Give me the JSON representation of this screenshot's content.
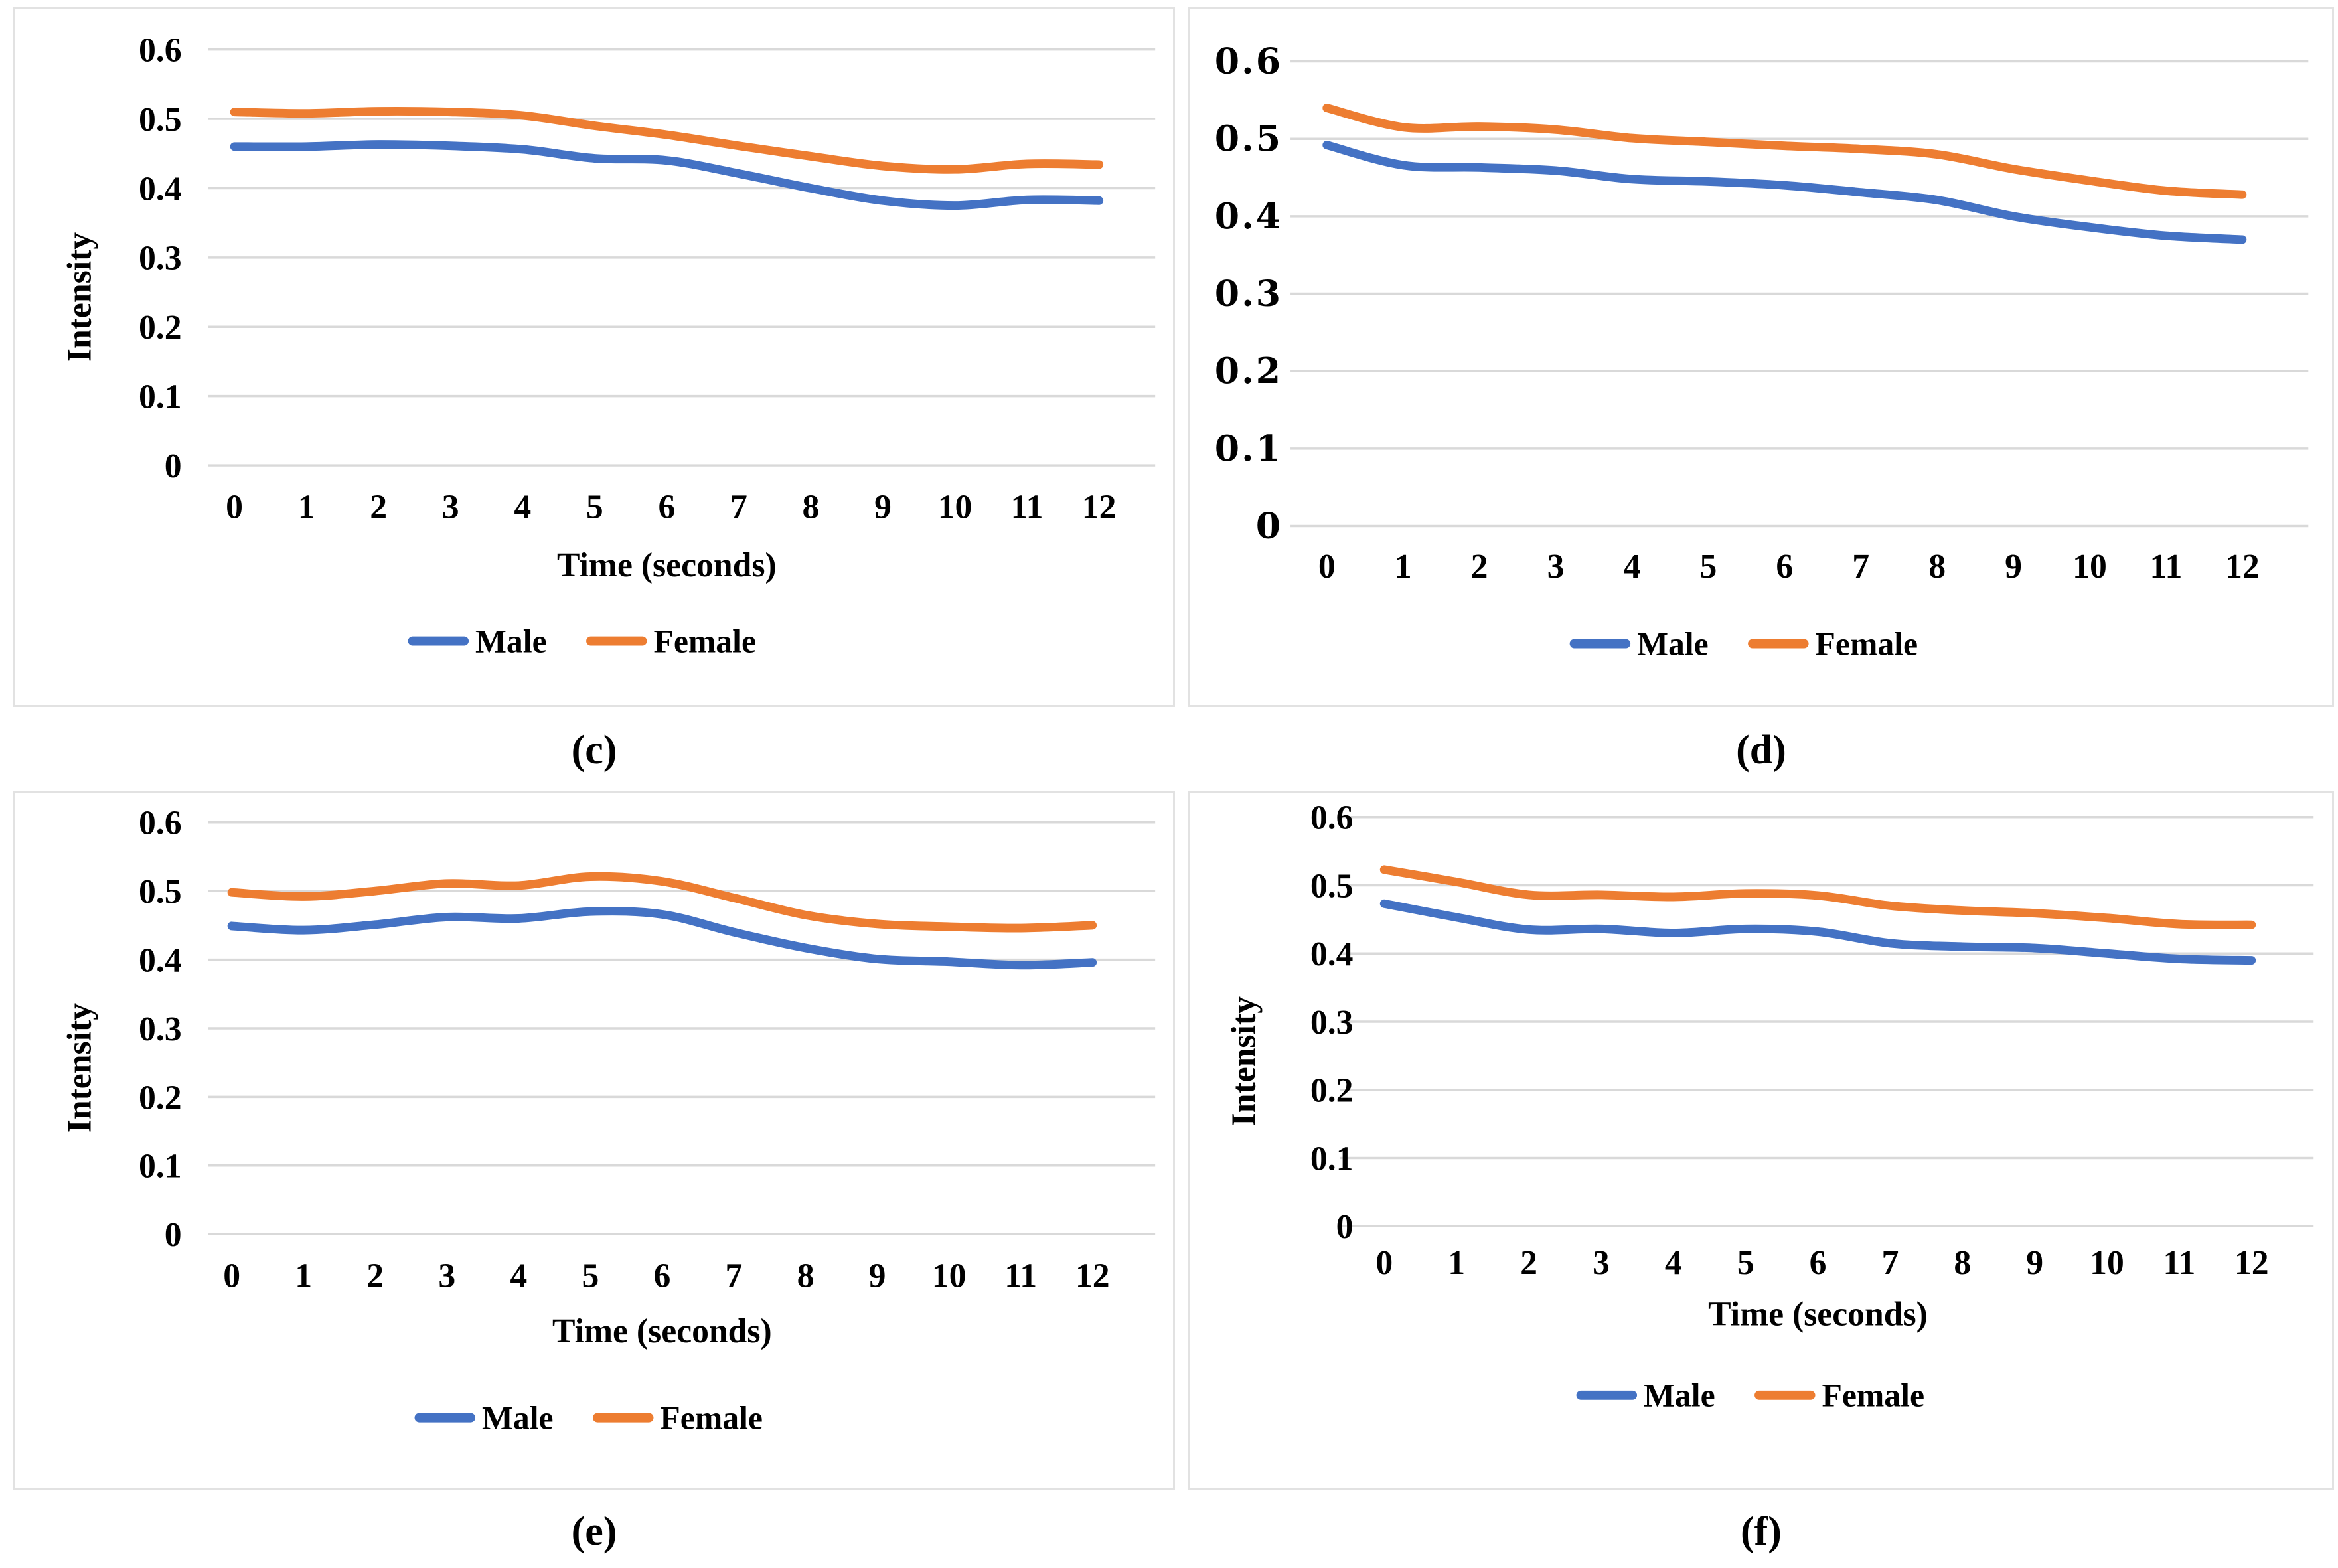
{
  "colors": {
    "male": "#4472C4",
    "female": "#ED7D31",
    "gridline": "#D9D9D9",
    "panel_border": "#E2E2E2",
    "text": "#000000",
    "background": "#FFFFFF"
  },
  "legend": {
    "male_label": "Male",
    "female_label": "Female",
    "position": "bottom"
  },
  "chart_data": [
    {
      "id": "c",
      "caption": "(c)",
      "type": "line",
      "title": "",
      "xlabel": "Time (seconds)",
      "ylabel": "Intensity",
      "x": [
        0,
        1,
        2,
        3,
        4,
        5,
        6,
        7,
        8,
        9,
        10,
        11,
        12
      ],
      "x_tick_labels": [
        "0",
        "1",
        "2",
        "3",
        "4",
        "5",
        "6",
        "7",
        "8",
        "9",
        "10",
        "11",
        "12"
      ],
      "y_ticks": [
        0.6,
        0.5,
        0.4,
        0.3,
        0.2,
        0.1,
        0
      ],
      "y_tick_labels": [
        "0.6",
        "0.5",
        "0.4",
        "0.3",
        "0.2",
        "0.1",
        "0"
      ],
      "ylim": [
        0,
        0.6
      ],
      "grid": true,
      "legend_position": "bottom",
      "series": [
        {
          "name": "Male",
          "color": "#4472C4",
          "values": [
            0.46,
            0.46,
            0.463,
            0.461,
            0.456,
            0.443,
            0.44,
            0.421,
            0.4,
            0.382,
            0.375,
            0.383,
            0.382
          ]
        },
        {
          "name": "Female",
          "color": "#ED7D31",
          "values": [
            0.51,
            0.508,
            0.511,
            0.51,
            0.505,
            0.49,
            0.477,
            0.461,
            0.446,
            0.432,
            0.427,
            0.435,
            0.434
          ]
        }
      ]
    },
    {
      "id": "d",
      "caption": "(d)",
      "type": "line",
      "title": "",
      "xlabel": "",
      "ylabel": "",
      "x": [
        0,
        1,
        2,
        3,
        4,
        5,
        6,
        7,
        8,
        9,
        10,
        11,
        12
      ],
      "x_tick_labels": [
        "0",
        "1",
        "2",
        "3",
        "4",
        "5",
        "6",
        "7",
        "8",
        "9",
        "10",
        "11",
        "12"
      ],
      "y_ticks": [
        0.6,
        0.5,
        0.4,
        0.3,
        0.2,
        0.1,
        0
      ],
      "y_tick_labels": [
        "0.6",
        "0.5",
        "0.4",
        "0.3",
        "0.2",
        "0.1",
        "0"
      ],
      "ylim": [
        0,
        0.6
      ],
      "grid": true,
      "legend_position": "bottom",
      "series": [
        {
          "name": "Male",
          "color": "#4472C4",
          "values": [
            0.492,
            0.466,
            0.463,
            0.459,
            0.448,
            0.445,
            0.44,
            0.431,
            0.421,
            0.4,
            0.386,
            0.375,
            0.37
          ]
        },
        {
          "name": "Female",
          "color": "#ED7D31",
          "values": [
            0.54,
            0.515,
            0.516,
            0.512,
            0.501,
            0.496,
            0.491,
            0.487,
            0.48,
            0.461,
            0.446,
            0.433,
            0.428
          ]
        }
      ]
    },
    {
      "id": "e",
      "caption": "(e)",
      "type": "line",
      "title": "",
      "xlabel": "Time (seconds)",
      "ylabel": "Intensity",
      "x": [
        0,
        1,
        2,
        3,
        4,
        5,
        6,
        7,
        8,
        9,
        10,
        11,
        12
      ],
      "x_tick_labels": [
        "0",
        "1",
        "2",
        "3",
        "4",
        "5",
        "6",
        "7",
        "8",
        "9",
        "10",
        "11",
        "12"
      ],
      "y_ticks": [
        0.6,
        0.5,
        0.4,
        0.3,
        0.2,
        0.1,
        0
      ],
      "y_tick_labels": [
        "0.6",
        "0.5",
        "0.4",
        "0.3",
        "0.2",
        "0.1",
        "0"
      ],
      "ylim": [
        0,
        0.6
      ],
      "grid": true,
      "legend_position": "bottom",
      "series": [
        {
          "name": "Male",
          "color": "#4472C4",
          "values": [
            0.449,
            0.443,
            0.451,
            0.462,
            0.46,
            0.47,
            0.466,
            0.44,
            0.417,
            0.401,
            0.397,
            0.392,
            0.396
          ]
        },
        {
          "name": "Female",
          "color": "#ED7D31",
          "values": [
            0.498,
            0.492,
            0.5,
            0.511,
            0.508,
            0.521,
            0.514,
            0.49,
            0.465,
            0.452,
            0.448,
            0.446,
            0.45
          ]
        }
      ]
    },
    {
      "id": "f",
      "caption": "(f)",
      "type": "line",
      "title": "",
      "xlabel": "Time (seconds)",
      "ylabel": "Intensity",
      "x": [
        0,
        1,
        2,
        3,
        4,
        5,
        6,
        7,
        8,
        9,
        10,
        11,
        12
      ],
      "x_tick_labels": [
        "0",
        "1",
        "2",
        "3",
        "4",
        "5",
        "6",
        "7",
        "8",
        "9",
        "10",
        "11",
        "12"
      ],
      "y_ticks": [
        0.6,
        0.5,
        0.4,
        0.3,
        0.2,
        0.1,
        0
      ],
      "y_tick_labels": [
        "0.6",
        "0.5",
        "0.4",
        "0.3",
        "0.2",
        "0.1",
        "0"
      ],
      "ylim": [
        0,
        0.6
      ],
      "grid": true,
      "legend_position": "bottom",
      "series": [
        {
          "name": "Male",
          "color": "#4472C4",
          "values": [
            0.473,
            0.453,
            0.435,
            0.436,
            0.43,
            0.436,
            0.432,
            0.415,
            0.41,
            0.408,
            0.4,
            0.392,
            0.39
          ]
        },
        {
          "name": "Female",
          "color": "#ED7D31",
          "values": [
            0.523,
            0.505,
            0.486,
            0.486,
            0.483,
            0.488,
            0.485,
            0.47,
            0.463,
            0.459,
            0.452,
            0.443,
            0.442
          ]
        }
      ]
    }
  ]
}
